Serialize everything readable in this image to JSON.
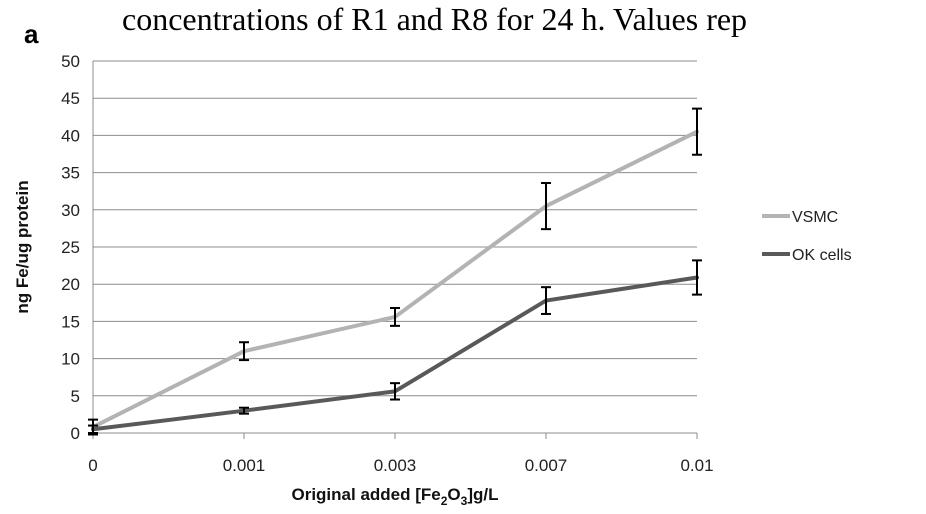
{
  "caption_text": "concentrations of R1 and R8 for 24 h. Values rep",
  "panel_label": "a",
  "chart_data": {
    "type": "line",
    "categories": [
      "0",
      "0.001",
      "0.003",
      "0.007",
      "0.01"
    ],
    "ylabel": "ng Fe/ug protein",
    "xlabel_parts": {
      "before": "Original added [Fe",
      "sub1": "2",
      "mid": "O",
      "sub2": "3",
      "after": "]g/L"
    },
    "ylim": [
      0,
      50
    ],
    "yticks": [
      0,
      5,
      10,
      15,
      20,
      25,
      30,
      35,
      40,
      45,
      50
    ],
    "grid": true,
    "legend_position": "right",
    "series": [
      {
        "name": "VSMC",
        "color": "#b3b3b3",
        "values": [
          0.8,
          11.0,
          15.6,
          30.5,
          40.5
        ],
        "errors": [
          1.0,
          1.2,
          1.2,
          3.1,
          3.1
        ]
      },
      {
        "name": "OK cells",
        "color": "#595959",
        "values": [
          0.5,
          3.0,
          5.6,
          17.8,
          20.9
        ],
        "errors": [
          0.5,
          0.4,
          1.1,
          1.8,
          2.3
        ]
      }
    ]
  }
}
